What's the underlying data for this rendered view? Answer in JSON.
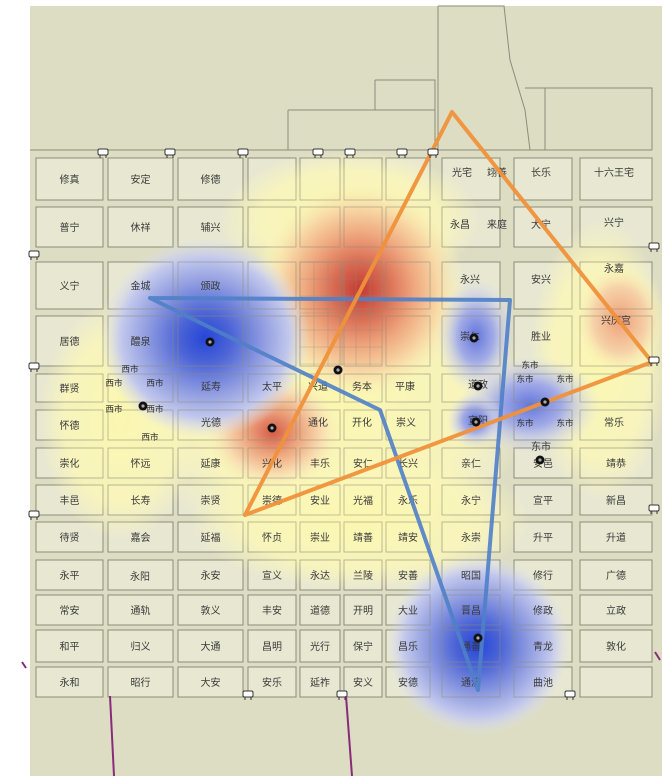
{
  "colors": {
    "background": "#ddddc4",
    "block": "#e8e8d2",
    "block_stroke": "#8c8c7a",
    "hot_core": "#c8443a",
    "warm": "#f2b07e",
    "cool_core": "#2f4fd6",
    "cool": "#a8b2e6",
    "yellow_halo": "#fbf7b8",
    "blue_route": "#4f7fc8",
    "orange_route": "#f0913a",
    "purple_line": "#8a2a7a"
  },
  "icons": {
    "gate": "gate-marker-icon",
    "site": "site-point-icon"
  },
  "wards": [
    "修真",
    "安定",
    "修德",
    "光宅",
    "翊善",
    "长乐",
    "十六王宅",
    "普宁",
    "休祥",
    "辅兴",
    "永昌",
    "来庭",
    "大宁",
    "兴宁",
    "义宁",
    "金城",
    "颁政",
    "永兴",
    "安兴",
    "永嘉",
    "居德",
    "醴泉",
    "崇仁",
    "胜业",
    "兴庆宫",
    "群贤",
    "延寿",
    "太平",
    "兴道",
    "务本",
    "平康",
    "道政",
    "怀德",
    "光德",
    "通化",
    "开化",
    "崇义",
    "宣阳",
    "东市",
    "常乐",
    "崇化",
    "怀远",
    "延康",
    "兴化",
    "丰乐",
    "安仁",
    "长兴",
    "亲仁",
    "安邑",
    "靖恭",
    "丰邑",
    "长寿",
    "崇贤",
    "崇德",
    "安业",
    "光福",
    "永乐",
    "永宁",
    "宣平",
    "新昌",
    "待贤",
    "嘉会",
    "延福",
    "怀贞",
    "崇业",
    "靖善",
    "靖安",
    "永崇",
    "升平",
    "升道",
    "永平",
    "永阳",
    "永安",
    "宣义",
    "永达",
    "兰陵",
    "安善",
    "昭国",
    "修行",
    "广德",
    "常安",
    "通轨",
    "敦义",
    "丰安",
    "道德",
    "开明",
    "大业",
    "晋昌",
    "修政",
    "立政",
    "和平",
    "归义",
    "大通",
    "昌明",
    "光行",
    "保宁",
    "昌乐",
    "通善",
    "青龙",
    "敦化",
    "永和",
    "昭行",
    "大安",
    "安乐",
    "延祚",
    "安义",
    "安德",
    "通济",
    "曲池"
  ],
  "market_labels": [
    "西市",
    "西市",
    "西市",
    "西市",
    "西市",
    "西市",
    "东市",
    "东市",
    "东市",
    "东市",
    "东市"
  ]
}
